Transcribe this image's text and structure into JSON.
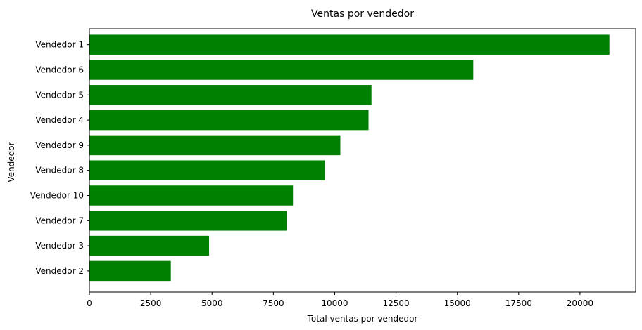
{
  "chart_data": {
    "type": "bar",
    "orientation": "horizontal",
    "title": "Ventas por vendedor",
    "xlabel": "Total ventas por vendedor",
    "ylabel": "Vendedor",
    "categories": [
      "Vendedor 1",
      "Vendedor 6",
      "Vendedor 5",
      "Vendedor 4",
      "Vendedor 9",
      "Vendedor 8",
      "Vendedor 10",
      "Vendedor 7",
      "Vendedor 3",
      "Vendedor 2"
    ],
    "values": [
      21200,
      15650,
      11500,
      11380,
      10230,
      9600,
      8300,
      8050,
      4880,
      3320
    ],
    "xlim": [
      0,
      22270
    ],
    "xticks": [
      0,
      2500,
      5000,
      7500,
      10000,
      12500,
      15000,
      17500,
      20000
    ],
    "grid": false,
    "bar_color": "#008000"
  }
}
